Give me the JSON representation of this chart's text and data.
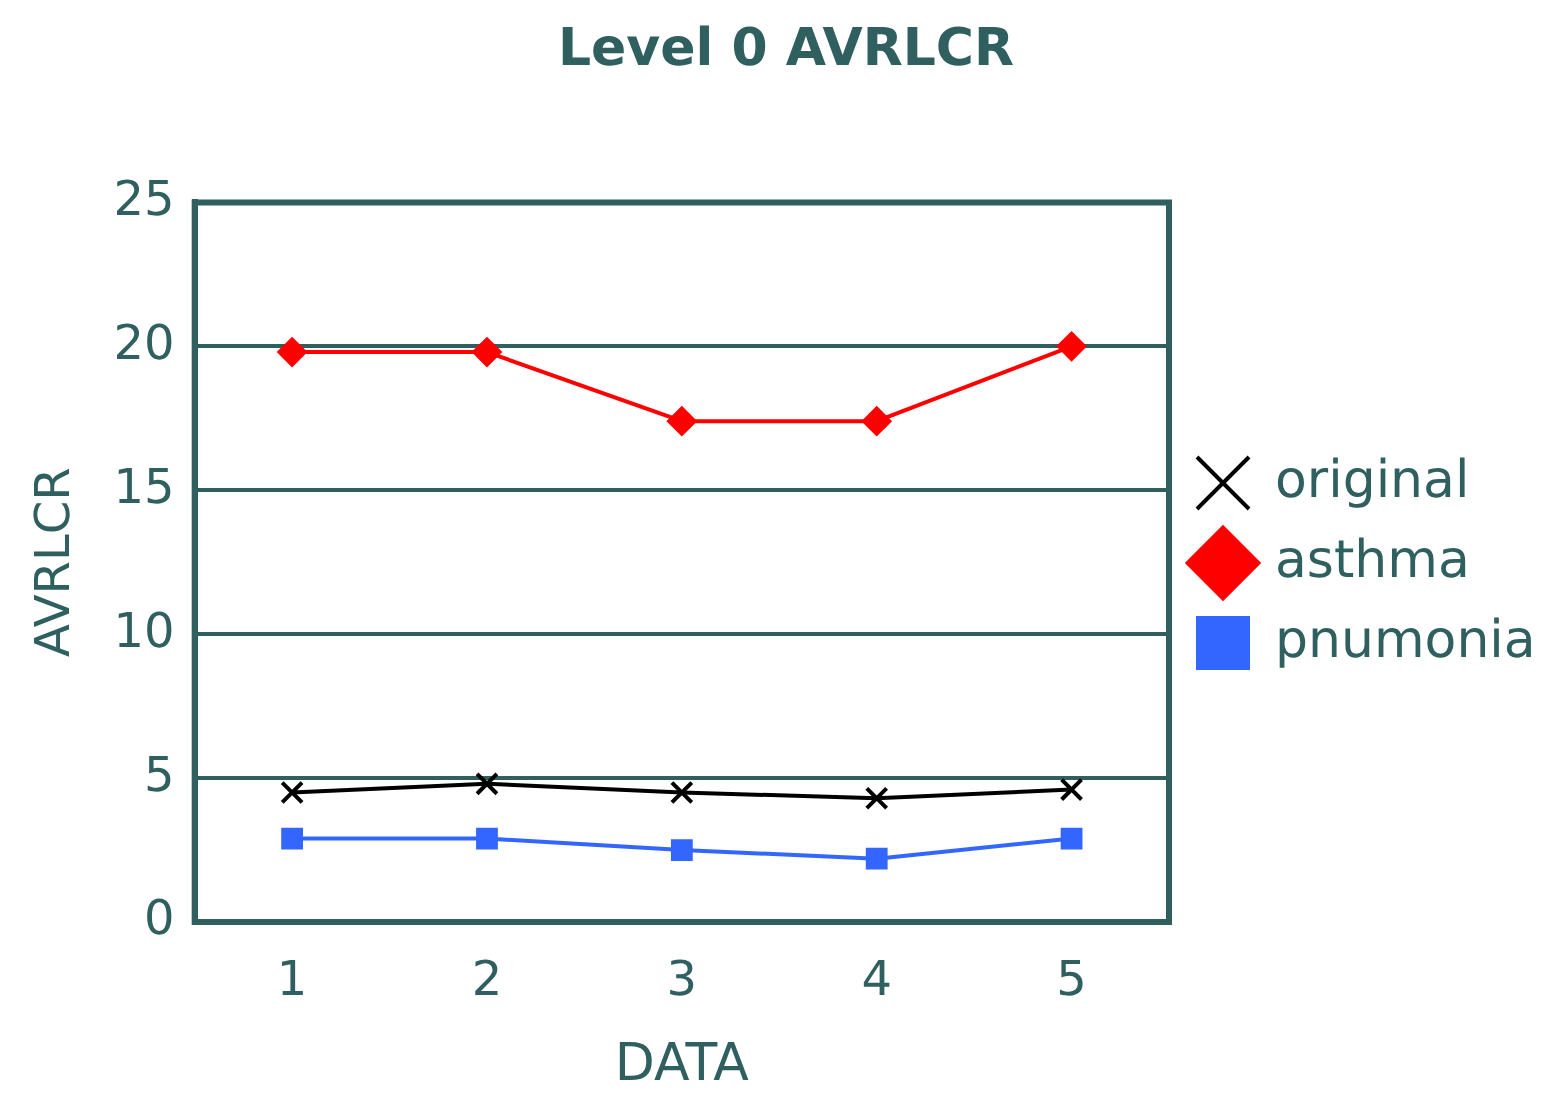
{
  "chart_data": {
    "type": "line",
    "title": "Level 0 AVRLCR",
    "xlabel": "DATA",
    "ylabel": "AVRLCR",
    "categories": [
      "1",
      "2",
      "3",
      "4",
      "5"
    ],
    "ylim": [
      0,
      25
    ],
    "yticks": [
      0,
      5,
      10,
      15,
      20,
      25
    ],
    "grid": "y",
    "legend": "right",
    "series": [
      {
        "name": "original",
        "color": "#000000",
        "marker": "cross",
        "values": [
          4.5,
          4.8,
          4.5,
          4.3,
          4.6
        ]
      },
      {
        "name": "asthma",
        "color": "#ff0000",
        "marker": "diamond",
        "values": [
          19.8,
          19.8,
          17.4,
          17.4,
          20
        ]
      },
      {
        "name": "pnumonia",
        "color": "#3366ff",
        "marker": "square",
        "values": [
          2.9,
          2.9,
          2.5,
          2.2,
          2.9
        ]
      }
    ]
  }
}
